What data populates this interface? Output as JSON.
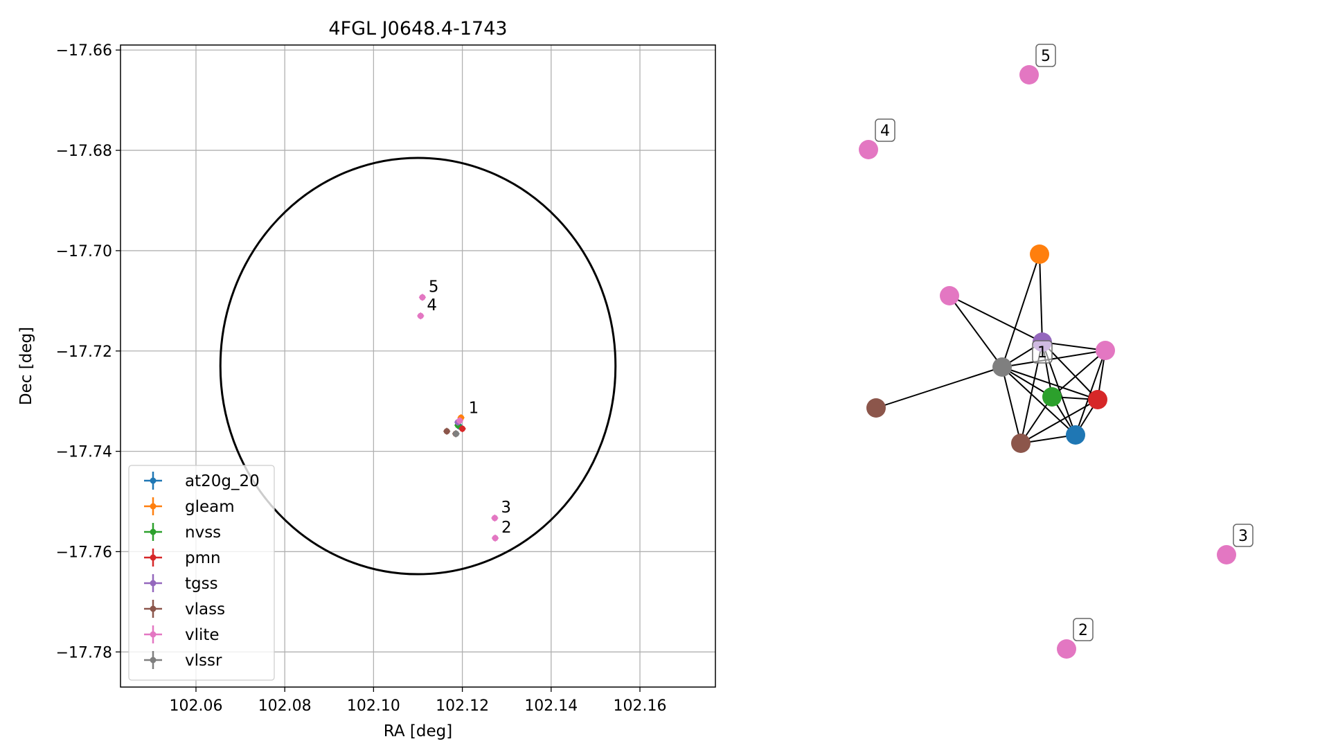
{
  "chart_data": [
    {
      "type": "scatter",
      "title": "4FGL J0648.4-1743",
      "xlabel": "RA [deg]",
      "ylabel": "Dec [deg]",
      "xlim": [
        102.043,
        102.177
      ],
      "ylim": [
        -17.787,
        -17.659
      ],
      "xticks": [
        102.06,
        102.08,
        102.1,
        102.12,
        102.14,
        102.16
      ],
      "xtick_labels": [
        "102.06",
        "102.08",
        "102.10",
        "102.12",
        "102.14",
        "102.16"
      ],
      "yticks": [
        -17.66,
        -17.68,
        -17.7,
        -17.72,
        -17.74,
        -17.76,
        -17.78
      ],
      "ytick_labels": [
        "−17.66",
        "−17.68",
        "−17.70",
        "−17.72",
        "−17.74",
        "−17.76",
        "−17.78"
      ],
      "grid": true,
      "legend_position": "lower-left",
      "circle": {
        "center_ra": 102.11,
        "center_dec": -17.723,
        "radius_ra": 0.0445,
        "radius_dec": 0.0415
      },
      "series": [
        {
          "name": "at20g_20",
          "color": "#1f77b4",
          "points": [
            {
              "x": 102.1193,
              "y": -17.735
            }
          ]
        },
        {
          "name": "gleam",
          "color": "#ff7f0e",
          "points": [
            {
              "x": 102.1197,
              "y": -17.7333
            }
          ]
        },
        {
          "name": "nvss",
          "color": "#2ca02c",
          "points": [
            {
              "x": 102.119,
              "y": -17.7348
            }
          ]
        },
        {
          "name": "pmn",
          "color": "#d62728",
          "points": [
            {
              "x": 102.12,
              "y": -17.7355
            }
          ]
        },
        {
          "name": "tgss",
          "color": "#9467bd",
          "points": [
            {
              "x": 102.119,
              "y": -17.7342
            }
          ]
        },
        {
          "name": "vlass",
          "color": "#8c564b",
          "points": [
            {
              "x": 102.1165,
              "y": -17.736
            },
            {
              "x": 102.1185,
              "y": -17.7365
            }
          ]
        },
        {
          "name": "vlite",
          "color": "#e377c2",
          "points": [
            {
              "x": 102.1194,
              "y": -17.7339
            },
            {
              "x": 102.1274,
              "y": -17.7573
            },
            {
              "x": 102.1273,
              "y": -17.7533
            },
            {
              "x": 102.1106,
              "y": -17.713
            },
            {
              "x": 102.111,
              "y": -17.7093
            }
          ]
        },
        {
          "name": "vlssr",
          "color": "#7f7f7f",
          "points": [
            {
              "x": 102.1186,
              "y": -17.7365
            }
          ]
        }
      ],
      "point_labels": [
        {
          "text": "1",
          "x": 102.12,
          "y": -17.7335
        },
        {
          "text": "2",
          "x": 102.1274,
          "y": -17.7573
        },
        {
          "text": "3",
          "x": 102.1273,
          "y": -17.7533
        },
        {
          "text": "4",
          "x": 102.1106,
          "y": -17.713
        },
        {
          "text": "5",
          "x": 102.111,
          "y": -17.7093
        }
      ]
    },
    {
      "type": "network",
      "nodes": [
        {
          "id": "vlite-5",
          "color": "#e377c2",
          "label": "5"
        },
        {
          "id": "vlite-4",
          "color": "#e377c2",
          "label": "4"
        },
        {
          "id": "gleam",
          "color": "#ff7f0e",
          "label": ""
        },
        {
          "id": "vlite-6",
          "color": "#e377c2",
          "label": ""
        },
        {
          "id": "tgss",
          "color": "#9467bd",
          "label": ""
        },
        {
          "id": "vlite-1",
          "color": "#e377c2",
          "label": ""
        },
        {
          "id": "vlssr",
          "color": "#7f7f7f",
          "label": ""
        },
        {
          "id": "nvss",
          "color": "#2ca02c",
          "label": ""
        },
        {
          "id": "pmn",
          "color": "#d62728",
          "label": ""
        },
        {
          "id": "vlass-1",
          "color": "#8c564b",
          "label": ""
        },
        {
          "id": "vlass-2",
          "color": "#8c564b",
          "label": ""
        },
        {
          "id": "at20g_20",
          "color": "#1f77b4",
          "label": ""
        },
        {
          "id": "vlite-3",
          "color": "#e377c2",
          "label": "3"
        },
        {
          "id": "vlite-2",
          "color": "#e377c2",
          "label": "2"
        }
      ],
      "edges": [
        [
          "vlite-6",
          "tgss"
        ],
        [
          "vlite-6",
          "vlssr"
        ],
        [
          "gleam",
          "tgss"
        ],
        [
          "gleam",
          "vlssr"
        ],
        [
          "vlssr",
          "tgss"
        ],
        [
          "vlssr",
          "vlite-1"
        ],
        [
          "vlssr",
          "nvss"
        ],
        [
          "vlssr",
          "pmn"
        ],
        [
          "vlssr",
          "vlass-1"
        ],
        [
          "vlssr",
          "vlass-2"
        ],
        [
          "vlssr",
          "at20g_20"
        ],
        [
          "tgss",
          "vlite-1"
        ],
        [
          "tgss",
          "nvss"
        ],
        [
          "tgss",
          "pmn"
        ],
        [
          "tgss",
          "vlass-2"
        ],
        [
          "tgss",
          "at20g_20"
        ],
        [
          "vlite-1",
          "nvss"
        ],
        [
          "vlite-1",
          "pmn"
        ],
        [
          "vlite-1",
          "at20g_20"
        ],
        [
          "nvss",
          "pmn"
        ],
        [
          "nvss",
          "vlass-2"
        ],
        [
          "nvss",
          "at20g_20"
        ],
        [
          "pmn",
          "vlass-2"
        ],
        [
          "pmn",
          "at20g_20"
        ],
        [
          "vlass-2",
          "at20g_20"
        ]
      ],
      "overlay_label": "1"
    }
  ]
}
